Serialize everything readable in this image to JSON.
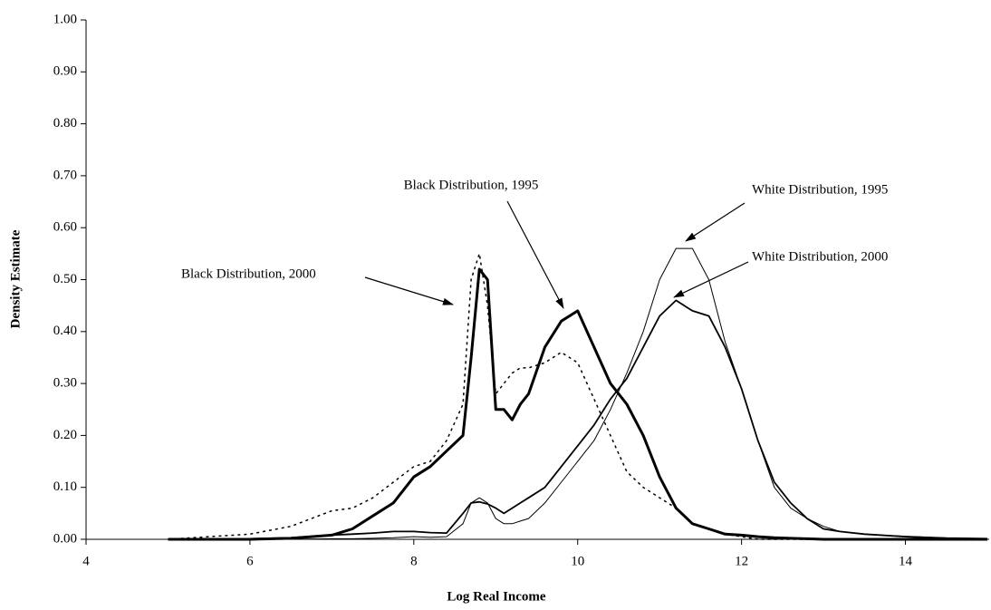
{
  "chart_data": {
    "type": "line",
    "xlabel": "Log Real Income",
    "ylabel": "Density Estimate",
    "x": [
      5,
      5.5,
      6,
      6.5,
      7,
      7.25,
      7.5,
      7.75,
      8,
      8.2,
      8.4,
      8.6,
      8.7,
      8.8,
      8.9,
      9.0,
      9.1,
      9.2,
      9.3,
      9.4,
      9.6,
      9.8,
      10,
      10.2,
      10.4,
      10.6,
      10.8,
      11,
      11.2,
      11.4,
      11.6,
      11.8,
      12,
      12.2,
      12.4,
      12.6,
      12.8,
      13,
      13.2,
      13.5,
      14,
      14.5,
      15
    ],
    "series": [
      {
        "name": "Black Distribution, 1995",
        "color": "#000000",
        "line_width": 3,
        "dashed": false,
        "values": [
          0,
          0,
          0,
          0.002,
          0.008,
          0.02,
          0.045,
          0.07,
          0.12,
          0.14,
          0.17,
          0.2,
          0.35,
          0.52,
          0.5,
          0.25,
          0.25,
          0.23,
          0.26,
          0.28,
          0.37,
          0.42,
          0.44,
          0.37,
          0.3,
          0.26,
          0.2,
          0.12,
          0.06,
          0.03,
          0.02,
          0.01,
          0.008,
          0.005,
          0.003,
          0.002,
          0.001,
          0,
          0,
          0,
          0,
          0,
          0
        ]
      },
      {
        "name": "White Distribution, 1995",
        "color": "#000000",
        "line_width": 1,
        "dashed": false,
        "values": [
          0,
          0,
          0,
          0,
          0.001,
          0.001,
          0.002,
          0.003,
          0.005,
          0.004,
          0.005,
          0.03,
          0.07,
          0.08,
          0.07,
          0.04,
          0.03,
          0.03,
          0.035,
          0.04,
          0.07,
          0.11,
          0.15,
          0.19,
          0.25,
          0.32,
          0.4,
          0.5,
          0.56,
          0.56,
          0.5,
          0.38,
          0.29,
          0.19,
          0.1,
          0.06,
          0.04,
          0.025,
          0.015,
          0.01,
          0.006,
          0.003,
          0.002
        ]
      },
      {
        "name": "White Distribution, 2000",
        "color": "#000000",
        "line_width": 1.8,
        "dashed": false,
        "values": [
          0,
          0,
          0.001,
          0.003,
          0.008,
          0.01,
          0.012,
          0.015,
          0.015,
          0.013,
          0.012,
          0.05,
          0.07,
          0.072,
          0.068,
          0.06,
          0.05,
          0.06,
          0.07,
          0.08,
          0.1,
          0.14,
          0.18,
          0.22,
          0.27,
          0.31,
          0.37,
          0.43,
          0.46,
          0.44,
          0.43,
          0.37,
          0.29,
          0.19,
          0.11,
          0.07,
          0.04,
          0.02,
          0.015,
          0.01,
          0.005,
          0.002,
          0
        ]
      },
      {
        "name": "Black Distribution, 2000",
        "color": "#000000",
        "line_width": 1.5,
        "dashed": true,
        "values": [
          0,
          0.005,
          0.01,
          0.025,
          0.055,
          0.06,
          0.08,
          0.11,
          0.14,
          0.15,
          0.19,
          0.26,
          0.5,
          0.55,
          0.45,
          0.28,
          0.3,
          0.32,
          0.33,
          0.33,
          0.34,
          0.36,
          0.34,
          0.27,
          0.2,
          0.13,
          0.1,
          0.08,
          0.06,
          0.03,
          0.02,
          0.01,
          0.005,
          0,
          0,
          0,
          0,
          0,
          0,
          0,
          0,
          0,
          0
        ]
      }
    ],
    "xlim": [
      4,
      15
    ],
    "ylim": [
      0,
      1
    ],
    "xticks": [
      4,
      6,
      8,
      10,
      12,
      14
    ],
    "yticks": [
      {
        "value": 0,
        "label": "0.00"
      },
      {
        "value": 0.1,
        "label": "0.10"
      },
      {
        "value": 0.2,
        "label": "0.20"
      },
      {
        "value": 0.3,
        "label": "0.30"
      },
      {
        "value": 0.4,
        "label": "0.40"
      },
      {
        "value": 0.5,
        "label": "0.50"
      },
      {
        "value": 0.6,
        "label": "0.60"
      },
      {
        "value": 0.7,
        "label": "0.70"
      },
      {
        "value": 0.8,
        "label": "0.80"
      },
      {
        "value": 0.9,
        "label": "0.90"
      },
      {
        "value": 1,
        "label": "1.00"
      }
    ],
    "grid": false
  }
}
